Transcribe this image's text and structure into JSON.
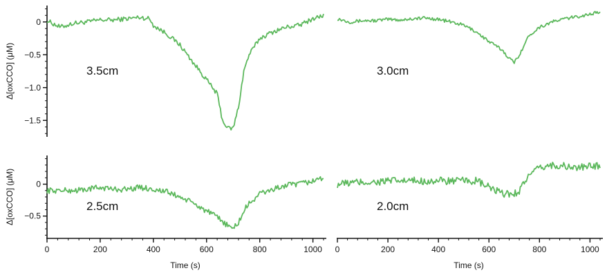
{
  "chart_data": [
    {
      "type": "line",
      "panel_label": "3.5cm",
      "ylabel": "Δ[oxCCO] (μM)",
      "xlabel": "",
      "xlim": [
        0,
        1040
      ],
      "ylim": [
        -1.75,
        0.25
      ],
      "yticks": [
        0,
        -0.5,
        -1.0,
        -1.5
      ],
      "ytick_labels": [
        "0",
        "−0.5",
        "−1.0",
        "−1.5"
      ],
      "xticks": [],
      "xtick_labels": [],
      "color": "#5cb85c",
      "noise": 0.035,
      "x": [
        0,
        50,
        100,
        150,
        200,
        250,
        300,
        350,
        385,
        400,
        450,
        500,
        550,
        600,
        640,
        660,
        680,
        700,
        720,
        740,
        760,
        800,
        850,
        900,
        950,
        1000,
        1040
      ],
      "y": [
        0.02,
        -0.08,
        -0.02,
        0.0,
        0.03,
        0.03,
        0.05,
        0.07,
        0.05,
        -0.05,
        -0.18,
        -0.35,
        -0.62,
        -0.88,
        -1.1,
        -1.5,
        -1.62,
        -1.62,
        -1.3,
        -0.75,
        -0.5,
        -0.25,
        -0.15,
        -0.08,
        -0.05,
        0.05,
        0.1
      ]
    },
    {
      "type": "line",
      "panel_label": "3.0cm",
      "ylabel": "",
      "xlabel": "",
      "xlim": [
        0,
        1040
      ],
      "ylim": [
        -1.75,
        0.25
      ],
      "yticks": [],
      "ytick_labels": [],
      "xticks": [],
      "xtick_labels": [],
      "color": "#5cb85c",
      "noise": 0.025,
      "x": [
        0,
        50,
        100,
        150,
        200,
        250,
        300,
        350,
        400,
        450,
        500,
        550,
        600,
        650,
        680,
        700,
        720,
        760,
        800,
        850,
        900,
        950,
        1000,
        1040
      ],
      "y": [
        0.05,
        0.0,
        0.02,
        0.02,
        0.04,
        0.03,
        0.05,
        0.06,
        0.04,
        0.0,
        -0.05,
        -0.15,
        -0.3,
        -0.42,
        -0.55,
        -0.62,
        -0.5,
        -0.2,
        -0.08,
        0.0,
        0.05,
        0.08,
        0.12,
        0.15
      ]
    },
    {
      "type": "line",
      "panel_label": "2.5cm",
      "ylabel": "Δ[oxCCO] (μM)",
      "xlabel": "",
      "xlim": [
        0,
        1040
      ],
      "ylim": [
        -0.85,
        0.45
      ],
      "yticks": [
        0,
        -0.5
      ],
      "ytick_labels": [
        "0",
        "−0.5"
      ],
      "xticks": [],
      "xtick_labels": [],
      "color": "#5cb85c",
      "noise": 0.045,
      "x": [
        0,
        50,
        100,
        150,
        200,
        250,
        300,
        350,
        400,
        450,
        500,
        550,
        600,
        650,
        680,
        700,
        720,
        750,
        800,
        850,
        900,
        950,
        1000,
        1040
      ],
      "y": [
        -0.1,
        -0.1,
        -0.1,
        -0.08,
        -0.05,
        -0.08,
        -0.08,
        -0.05,
        -0.08,
        -0.12,
        -0.2,
        -0.3,
        -0.42,
        -0.55,
        -0.65,
        -0.7,
        -0.6,
        -0.35,
        -0.15,
        -0.08,
        -0.02,
        0.0,
        0.05,
        0.1
      ]
    },
    {
      "type": "line",
      "panel_label": "2.0cm",
      "ylabel": "",
      "xlabel": "Time (s)",
      "xlim": [
        0,
        1040
      ],
      "ylim": [
        -0.85,
        0.45
      ],
      "yticks": [],
      "ytick_labels": [],
      "xticks": [
        0,
        200,
        400,
        600,
        800,
        1000
      ],
      "xtick_labels": [
        "0",
        "200",
        "400",
        "600",
        "800",
        "1000"
      ],
      "color": "#5cb85c",
      "noise": 0.06,
      "x": [
        0,
        50,
        100,
        150,
        200,
        250,
        300,
        350,
        400,
        450,
        500,
        550,
        600,
        650,
        700,
        720,
        750,
        800,
        850,
        900,
        950,
        1000,
        1040
      ],
      "y": [
        0.0,
        0.02,
        0.03,
        0.03,
        0.05,
        0.05,
        0.05,
        0.05,
        0.05,
        0.05,
        0.05,
        0.05,
        -0.05,
        -0.15,
        -0.15,
        -0.1,
        0.1,
        0.25,
        0.3,
        0.28,
        0.25,
        0.28,
        0.3
      ]
    }
  ],
  "bottom_left_axis": {
    "xlabel": "Time (s)",
    "xticks": [
      0,
      200,
      400,
      600,
      800,
      1000
    ],
    "xtick_labels": [
      "0",
      "200",
      "400",
      "600",
      "800",
      "1000"
    ]
  }
}
